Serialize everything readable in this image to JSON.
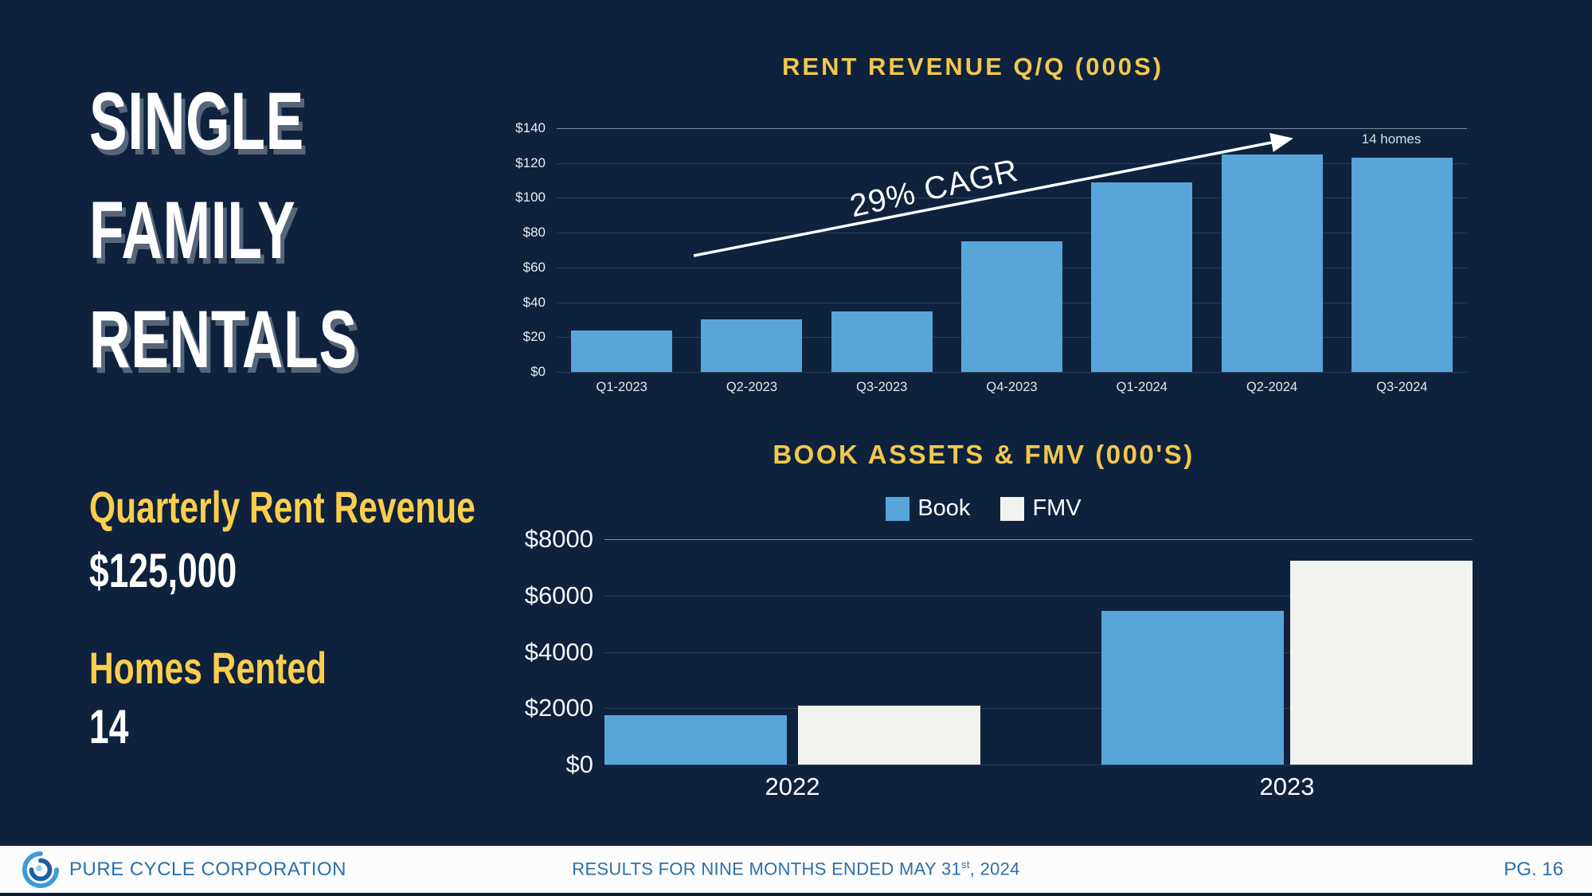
{
  "slide": {
    "title_lines": [
      "SINGLE",
      "FAMILY",
      "RENTALS"
    ],
    "stats": [
      {
        "label": "Quarterly Rent Revenue",
        "value": "$125,000"
      },
      {
        "label": "Homes Rented",
        "value": "14"
      }
    ]
  },
  "colors": {
    "background": "#0E223E",
    "accent_yellow": "#F2C84B",
    "bar_blue": "#58A5DA",
    "fmv_white": "#F2F2EF",
    "footer_blue": "#2D6FAD"
  },
  "chart_data": [
    {
      "type": "bar",
      "title": "RENT REVENUE Q/Q (000S)",
      "categories": [
        "Q1-2023",
        "Q2-2023",
        "Q3-2023",
        "Q4-2023",
        "Q1-2024",
        "Q2-2024",
        "Q3-2024"
      ],
      "values": [
        24,
        30,
        35,
        75,
        109,
        125,
        123
      ],
      "xlabel": "",
      "ylabel": "",
      "ylim": [
        0,
        140
      ],
      "yticks": [
        0,
        20,
        40,
        60,
        80,
        100,
        120,
        140
      ],
      "ytick_labels": [
        "$0",
        "$20",
        "$40",
        "$60",
        "$80",
        "$100",
        "$120",
        "$140"
      ],
      "bar_color": "#58A5DA",
      "grid": true,
      "legend_position": "none",
      "annotations": {
        "cagr": "29% CAGR",
        "homes": "14 homes"
      }
    },
    {
      "type": "bar",
      "title": "BOOK ASSETS & FMV (000'S)",
      "categories": [
        "2022",
        "2023"
      ],
      "series": [
        {
          "name": "Book",
          "color": "#58A5DA",
          "values": [
            1750,
            5450
          ]
        },
        {
          "name": "FMV",
          "color": "#F2F2EF",
          "values": [
            2100,
            7250
          ]
        }
      ],
      "xlabel": "",
      "ylabel": "",
      "ylim": [
        0,
        8000
      ],
      "yticks": [
        0,
        2000,
        4000,
        6000,
        8000
      ],
      "ytick_labels": [
        "$0",
        "$2000",
        "$4000",
        "$6000",
        "$8000"
      ],
      "grid": true,
      "legend_position": "top"
    }
  ],
  "footer": {
    "logo_icon": "pure-cycle-swirl-logo",
    "company": "PURE CYCLE CORPORATION",
    "center_prefix": "RESULTS FOR NINE MONTHS ENDED MAY 31",
    "center_sup": "st",
    "center_suffix": ", 2024",
    "page": "PG. 16"
  }
}
